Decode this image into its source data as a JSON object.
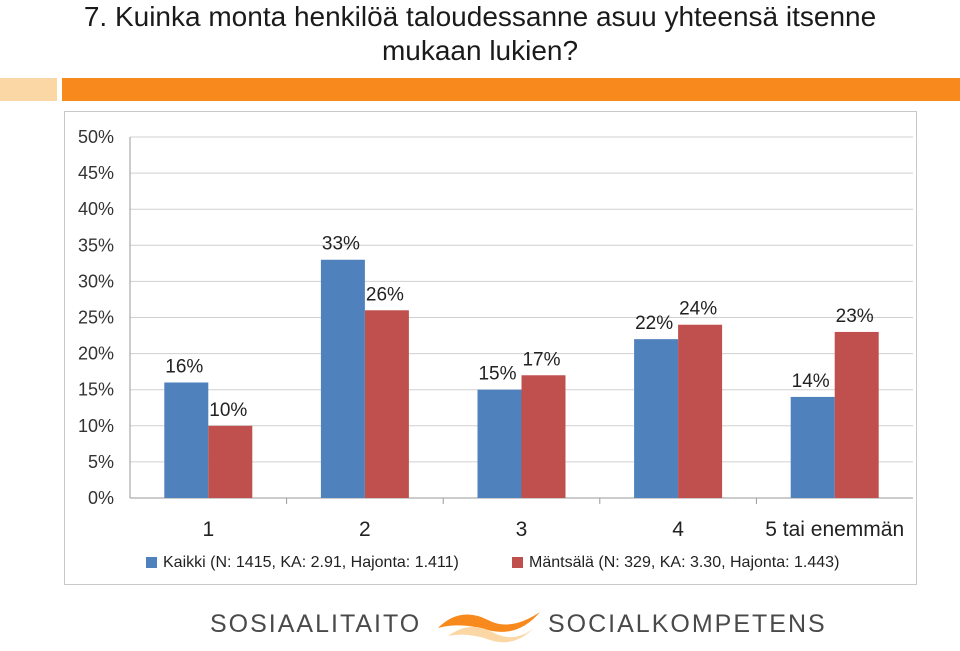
{
  "title_line1": "7. Kuinka monta henkilöä taloudessanne asuu yhteensä itsenne",
  "title_line2": "mukaan lukien?",
  "footer": {
    "left_word": "SOSIAALITAITO",
    "right_word": "SOCIALKOMPETENS"
  },
  "colors": {
    "orange": "#f8891d",
    "light_orange": "#fbd7a6",
    "series1": "#4f81bd",
    "series2": "#c0504d"
  },
  "chart_data": {
    "type": "bar",
    "categories": [
      "1",
      "2",
      "3",
      "4",
      "5 tai enemmän"
    ],
    "series": [
      {
        "name": "Kaikki (N: 1415, KA: 2.91, Hajonta: 1.411)",
        "values": [
          16,
          33,
          15,
          22,
          14
        ],
        "labels": [
          "16%",
          "33%",
          "15%",
          "22%",
          "14%"
        ]
      },
      {
        "name": "Mäntsälä (N: 329, KA: 3.30, Hajonta: 1.443)",
        "values": [
          10,
          26,
          17,
          24,
          23
        ],
        "labels": [
          "10%",
          "26%",
          "17%",
          "24%",
          "23%"
        ]
      }
    ],
    "y_ticks": [
      "0%",
      "5%",
      "10%",
      "15%",
      "20%",
      "25%",
      "30%",
      "35%",
      "40%",
      "45%",
      "50%"
    ],
    "ylim": [
      0,
      50
    ],
    "grid": true,
    "legend_position": "bottom"
  }
}
